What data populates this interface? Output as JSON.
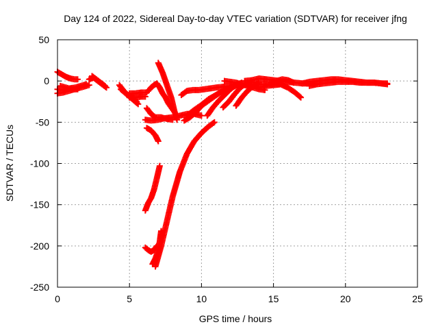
{
  "chart_data": {
    "type": "scatter",
    "title": "Day 124 of 2022, Sidereal Day-to-day VTEC variation (SDTVAR) for receiver jfng",
    "xlabel": "GPS time / hours",
    "ylabel": "SDTVAR / TECUs",
    "xlim": [
      0,
      25
    ],
    "ylim": [
      -250,
      50
    ],
    "xticks": [
      0,
      5,
      10,
      15,
      20,
      25
    ],
    "yticks": [
      -250,
      -200,
      -150,
      -100,
      -50,
      0,
      50
    ],
    "grid": true,
    "marker": "+",
    "color": "#ff0000",
    "series": [
      {
        "x": [
          0.0,
          0.3,
          0.6,
          0.9,
          1.2,
          1.4
        ],
        "y": [
          11,
          8,
          5,
          3,
          2,
          2
        ]
      },
      {
        "x": [
          0.0,
          0.4,
          0.8,
          1.2,
          1.6,
          2.0,
          2.2
        ],
        "y": [
          -15,
          -14,
          -12,
          -10,
          -8,
          -6,
          -5
        ]
      },
      {
        "x": [
          0.0,
          0.4,
          0.8,
          1.2,
          1.6,
          2.0
        ],
        "y": [
          -10,
          -11,
          -9,
          -8,
          -6,
          -4
        ]
      },
      {
        "x": [
          0.2,
          0.6,
          1.0,
          1.4
        ],
        "y": [
          -6,
          -8,
          -10,
          -10
        ]
      },
      {
        "x": [
          2.2,
          2.5,
          2.8,
          3.1,
          3.4
        ],
        "y": [
          2,
          4,
          0,
          -4,
          -8
        ]
      },
      {
        "x": [
          2.4,
          2.7,
          3.0,
          3.3
        ],
        "y": [
          6,
          2,
          -2,
          -6
        ]
      },
      {
        "x": [
          4.3,
          4.6,
          4.9,
          5.2,
          5.5
        ],
        "y": [
          -5,
          -12,
          -17,
          -20,
          -25
        ]
      },
      {
        "x": [
          4.4,
          4.8,
          5.2,
          5.6
        ],
        "y": [
          -10,
          -16,
          -22,
          -28
        ]
      },
      {
        "x": [
          5.0,
          5.4,
          5.8,
          6.2
        ],
        "y": [
          -15,
          -15,
          -14,
          -14
        ]
      },
      {
        "x": [
          5.0,
          5.4,
          5.8,
          6.1
        ],
        "y": [
          -20,
          -20,
          -19,
          -19
        ]
      },
      {
        "x": [
          6.1,
          6.5,
          7.0,
          7.5,
          8.0,
          8.5,
          9.0,
          9.5,
          10.0
        ],
        "y": [
          -47,
          -48,
          -47,
          -45,
          -44,
          -42,
          -40,
          -40,
          -42
        ]
      },
      {
        "x": [
          6.2,
          6.5,
          6.8,
          7.0
        ],
        "y": [
          -57,
          -60,
          -66,
          -73
        ]
      },
      {
        "x": [
          6.2,
          6.5,
          6.8,
          7.2,
          7.6,
          8.0
        ],
        "y": [
          -33,
          -40,
          -44,
          -44,
          -46,
          -47
        ]
      },
      {
        "x": [
          6.3,
          6.5,
          6.7,
          6.9,
          7.1,
          7.3,
          7.5,
          7.7,
          7.9,
          8.1
        ],
        "y": [
          -12,
          -8,
          -5,
          -3,
          -8,
          -15,
          -20,
          -27,
          -32,
          -37
        ]
      },
      {
        "x": [
          7.0,
          7.3,
          7.6,
          7.9,
          8.1,
          8.3
        ],
        "y": [
          22,
          10,
          -5,
          -20,
          -35,
          -47
        ]
      },
      {
        "x": [
          6.1,
          6.3,
          6.5,
          6.7,
          6.9,
          7.1
        ],
        "y": [
          -157,
          -148,
          -142,
          -132,
          -118,
          -103
        ]
      },
      {
        "x": [
          6.1,
          6.3,
          6.5,
          6.7,
          6.9
        ],
        "y": [
          -202,
          -205,
          -207,
          -205,
          -200
        ]
      },
      {
        "x": [
          6.6,
          6.8,
          7.0,
          7.1,
          7.2
        ],
        "y": [
          -222,
          -215,
          -205,
          -195,
          -182
        ]
      },
      {
        "x": [
          6.8,
          7.2,
          7.6,
          8.0,
          8.5,
          9.0,
          9.5,
          10.0,
          10.5,
          10.9
        ],
        "y": [
          -225,
          -200,
          -170,
          -140,
          -110,
          -88,
          -73,
          -63,
          -55,
          -50
        ]
      },
      {
        "x": [
          8.6,
          9.0,
          9.4,
          9.8,
          10.2,
          10.6,
          11.0,
          11.5,
          12.0,
          12.5,
          13.0,
          13.5,
          14.0,
          14.5,
          15.0,
          15.5
        ],
        "y": [
          -17,
          -12,
          -11,
          -11,
          -10,
          -9,
          -8,
          -7,
          -6,
          -5,
          -5,
          -4,
          -4,
          -4,
          -4,
          -4
        ]
      },
      {
        "x": [
          9.0,
          9.5,
          10.0,
          10.5,
          11.0,
          11.5,
          12.0,
          12.5
        ],
        "y": [
          -42,
          -35,
          -29,
          -22,
          -17,
          -12,
          -8,
          -5
        ]
      },
      {
        "x": [
          8.8,
          9.2,
          9.6,
          10.0,
          10.4,
          10.8,
          11.2
        ],
        "y": [
          -48,
          -44,
          -38,
          -30,
          -25,
          -20,
          -15
        ]
      },
      {
        "x": [
          10.4,
          10.8,
          11.2,
          11.6,
          12.0,
          12.4,
          12.8
        ],
        "y": [
          -42,
          -32,
          -24,
          -17,
          -10,
          -5,
          -2
        ]
      },
      {
        "x": [
          11.5,
          11.9,
          12.3,
          12.7,
          13.1,
          13.5
        ],
        "y": [
          -32,
          -25,
          -16,
          -8,
          -3,
          -1
        ]
      },
      {
        "x": [
          12.4,
          12.8,
          13.2,
          13.6,
          14.0
        ],
        "y": [
          -30,
          -20,
          -12,
          -6,
          -2
        ]
      },
      {
        "x": [
          11.6,
          12.0,
          12.4,
          12.8,
          13.2,
          13.6,
          14.0,
          14.4
        ],
        "y": [
          0,
          -1,
          -2,
          -4,
          -6,
          -8,
          -10,
          -11
        ]
      },
      {
        "x": [
          13.0,
          13.5,
          14.0,
          14.5,
          15.0,
          15.5,
          16.0,
          16.5,
          17.0,
          17.5,
          18.0
        ],
        "y": [
          0,
          1,
          3,
          2,
          1,
          0,
          -1,
          -2,
          -3,
          -3,
          -4
        ]
      },
      {
        "x": [
          14.0,
          14.5,
          15.0,
          15.5,
          16.0,
          16.5,
          16.9
        ],
        "y": [
          -8,
          -6,
          -5,
          -4,
          -8,
          -14,
          -20
        ]
      },
      {
        "x": [
          14.8,
          15.2,
          15.6,
          16.0,
          16.4
        ],
        "y": [
          -2,
          0,
          2,
          1,
          -2
        ]
      },
      {
        "x": [
          17.0,
          17.5,
          18.0,
          18.5,
          19.0,
          19.5,
          20.0,
          20.5,
          21.0,
          21.5,
          22.0,
          22.5,
          22.9
        ],
        "y": [
          -3,
          -1,
          0,
          1,
          2,
          2,
          1,
          0,
          -1,
          -2,
          -2,
          -3,
          -3
        ]
      },
      {
        "x": [
          17.5,
          18.0,
          18.5,
          19.0,
          19.5,
          20.0,
          20.5,
          21.0,
          21.5,
          22.0,
          22.5,
          22.9
        ],
        "y": [
          -6,
          -4,
          -3,
          -2,
          -1,
          -1,
          -1,
          -2,
          -2,
          -2,
          -3,
          -4
        ]
      }
    ]
  }
}
